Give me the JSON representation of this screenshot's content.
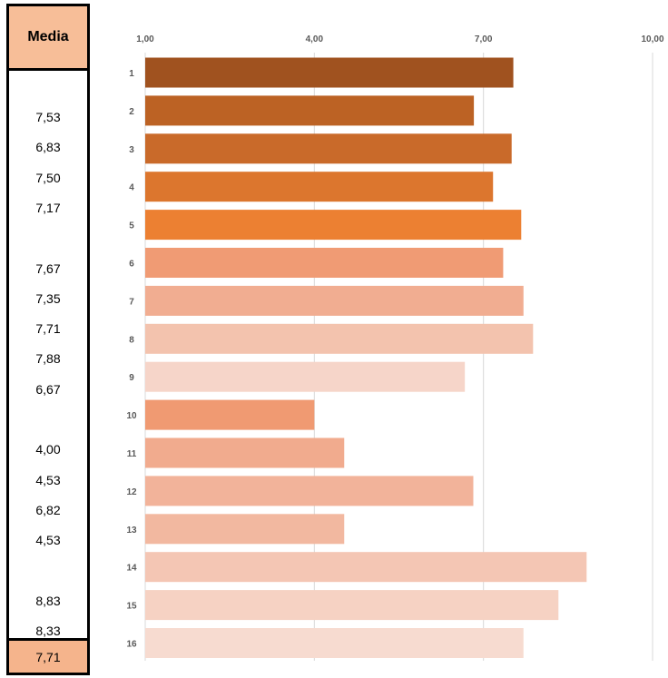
{
  "media_column": {
    "header": "Media",
    "values": [
      "7,53",
      "6,83",
      "7,50",
      "7,17",
      "",
      "7,67",
      "7,35",
      "7,71",
      "7,88",
      "6,67",
      "",
      "4,00",
      "4,53",
      "6,82",
      "4,53",
      "",
      "8,83",
      "8,33"
    ],
    "total": "7,71"
  },
  "chart_data": {
    "type": "bar",
    "orientation": "horizontal",
    "categories": [
      "1",
      "2",
      "3",
      "4",
      "5",
      "6",
      "7",
      "8",
      "9",
      "10",
      "11",
      "12",
      "13",
      "14",
      "15",
      "16"
    ],
    "values": [
      7.53,
      6.83,
      7.5,
      7.17,
      7.67,
      7.35,
      7.71,
      7.88,
      6.67,
      4.0,
      4.53,
      6.82,
      4.53,
      8.83,
      8.33,
      7.71
    ],
    "colors": [
      "#a0521f",
      "#bc6224",
      "#c96a2a",
      "#dc762e",
      "#ec8032",
      "#f09b74",
      "#f1ad91",
      "#f3c3ae",
      "#f6d5c9",
      "#f09a72",
      "#f1ab8e",
      "#f2b39a",
      "#f2b8a0",
      "#f4c6b4",
      "#f6d2c3",
      "#f7dbd0"
    ],
    "xlim": [
      1,
      10
    ],
    "ticks": [
      "1,00",
      "4,00",
      "7,00",
      "10,00"
    ],
    "tick_values": [
      1,
      4,
      7,
      10
    ],
    "grid": true,
    "title": "",
    "xlabel": "",
    "ylabel": ""
  }
}
